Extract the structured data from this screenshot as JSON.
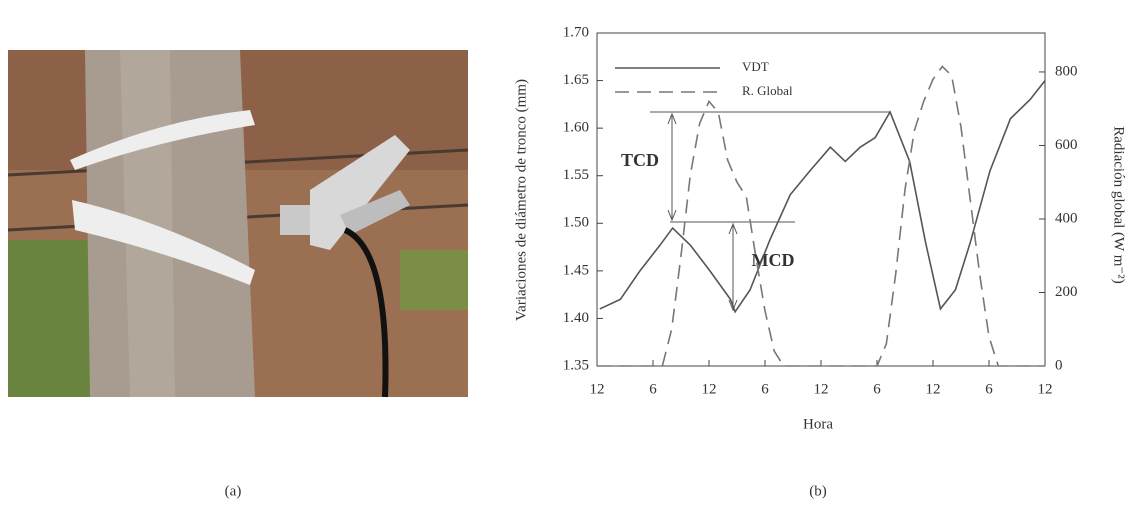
{
  "chart_data": {
    "type": "line",
    "caption_a": "(a)",
    "caption_b": "(b)",
    "xlabel": "Hora",
    "ylabel": "Variaciones de diámetro de tronco (mm)",
    "y2label": "Radiación global (W m⁻²)",
    "annotations": [
      "TCD",
      "MCD"
    ],
    "xlim": [
      0,
      48
    ],
    "xticks": [
      {
        "value": 0,
        "label": "12"
      },
      6,
      12,
      {
        "value": 18,
        "label": "6"
      },
      {
        "value": 24,
        "label": "12"
      },
      {
        "value": 30,
        "label": "6"
      },
      {
        "value": 36,
        "label": "12"
      },
      {
        "value": 42,
        "label": "6"
      },
      {
        "value": 48,
        "label": "12"
      }
    ],
    "ylim": [
      1.35,
      1.7
    ],
    "yticks": [
      1.35,
      {
        "value": 1.4,
        "label": "1.40"
      },
      1.45,
      {
        "value": 1.5,
        "label": "1.50"
      },
      1.55,
      {
        "value": 1.6,
        "label": "1.60"
      },
      1.65,
      {
        "value": 1.7,
        "label": "1.70"
      }
    ],
    "y2lim": [
      0,
      906
    ],
    "y2ticks": [
      0,
      200,
      400,
      600,
      800
    ],
    "series": [
      {
        "name": "VDT",
        "color": "#555555",
        "dash": "solid",
        "x": [
          0.3,
          2.5,
          4.6,
          6.75,
          8.1,
          10,
          12.1,
          14.3,
          14.8,
          16.4,
          18.5,
          20.7,
          22.8,
          25,
          26.6,
          28.2,
          29.8,
          31.4,
          33.5,
          35.2,
          36.8,
          38.4,
          40,
          42.1,
          44.3,
          46.4,
          48
        ],
        "values": [
          1.41,
          1.42,
          1.45,
          1.477,
          1.495,
          1.477,
          1.45,
          1.42,
          1.407,
          1.43,
          1.482,
          1.53,
          1.555,
          1.58,
          1.565,
          1.58,
          1.59,
          1.617,
          1.565,
          1.48,
          1.41,
          1.43,
          1.48,
          1.555,
          1.61,
          1.63,
          1.65
        ]
      },
      {
        "name": "R. Global",
        "color": "#777777",
        "dash": "dashed",
        "axis": "y2",
        "x": [
          0,
          6,
          7,
          8,
          9,
          10,
          11,
          12,
          13,
          14,
          15,
          16,
          17,
          18,
          19,
          20,
          30,
          31,
          32,
          33,
          34,
          35,
          36,
          37,
          38,
          39,
          40,
          41,
          42,
          43,
          48
        ],
        "values": [
          0,
          0,
          0,
          100,
          300,
          520,
          660,
          720,
          690,
          560,
          500,
          460,
          300,
          150,
          40,
          0,
          0,
          60,
          250,
          480,
          640,
          720,
          780,
          815,
          790,
          650,
          450,
          250,
          80,
          0,
          0
        ]
      }
    ]
  }
}
